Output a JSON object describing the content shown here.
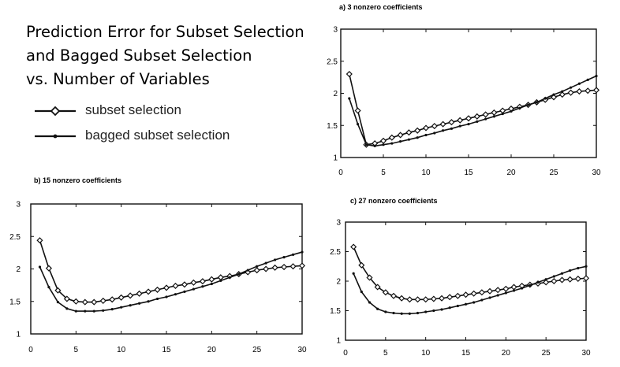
{
  "title": {
    "lines": [
      "Prediction Error for Subset Selection",
      "and Bagged Subset Selection",
      "vs. Number of Variables"
    ]
  },
  "legend": {
    "items": [
      {
        "label": "subset selection",
        "marker": "open-diamond"
      },
      {
        "label": "bagged subset selection",
        "marker": "small-dot"
      }
    ]
  },
  "chart_data": [
    {
      "type": "line",
      "title": "a) 3 nonzero coefficients",
      "xlim": [
        0,
        30
      ],
      "ylim": [
        1,
        3
      ],
      "xticks": [
        0,
        5,
        10,
        15,
        20,
        25,
        30
      ],
      "yticks": [
        1,
        1.5,
        2,
        2.5,
        3
      ],
      "yticklabels": [
        "1",
        "1.5",
        "2",
        "2.5",
        "3"
      ],
      "x": [
        1,
        2,
        3,
        4,
        5,
        6,
        7,
        8,
        9,
        10,
        11,
        12,
        13,
        14,
        15,
        16,
        17,
        18,
        19,
        20,
        21,
        22,
        23,
        24,
        25,
        26,
        27,
        28,
        29,
        30
      ],
      "series": [
        {
          "name": "subset selection",
          "marker": "open-diamond",
          "values": [
            2.3,
            1.73,
            1.2,
            1.22,
            1.26,
            1.31,
            1.35,
            1.39,
            1.42,
            1.46,
            1.49,
            1.52,
            1.55,
            1.58,
            1.61,
            1.64,
            1.67,
            1.7,
            1.73,
            1.76,
            1.79,
            1.82,
            1.86,
            1.9,
            1.94,
            1.98,
            2.01,
            2.03,
            2.04,
            2.05
          ]
        },
        {
          "name": "bagged subset selection",
          "marker": "small-dot",
          "values": [
            1.92,
            1.52,
            1.2,
            1.18,
            1.2,
            1.22,
            1.25,
            1.28,
            1.31,
            1.35,
            1.38,
            1.42,
            1.45,
            1.49,
            1.52,
            1.56,
            1.6,
            1.64,
            1.68,
            1.72,
            1.77,
            1.82,
            1.86,
            1.92,
            1.98,
            2.03,
            2.09,
            2.15,
            2.21,
            2.27
          ]
        }
      ]
    },
    {
      "type": "line",
      "title": "b) 15 nonzero coefficients",
      "xlim": [
        0,
        30
      ],
      "ylim": [
        1,
        3
      ],
      "xticks": [
        0,
        5,
        10,
        15,
        20,
        25,
        30
      ],
      "yticks": [
        1,
        1.5,
        2,
        2.5,
        3
      ],
      "yticklabels": [
        "1",
        "1.5",
        "2",
        "2.5",
        "3"
      ],
      "x": [
        1,
        2,
        3,
        4,
        5,
        6,
        7,
        8,
        9,
        10,
        11,
        12,
        13,
        14,
        15,
        16,
        17,
        18,
        19,
        20,
        21,
        22,
        23,
        24,
        25,
        26,
        27,
        28,
        29,
        30
      ],
      "series": [
        {
          "name": "subset selection",
          "marker": "open-diamond",
          "values": [
            2.44,
            2.01,
            1.67,
            1.54,
            1.5,
            1.49,
            1.49,
            1.51,
            1.53,
            1.56,
            1.59,
            1.62,
            1.65,
            1.68,
            1.71,
            1.74,
            1.76,
            1.79,
            1.81,
            1.84,
            1.87,
            1.89,
            1.92,
            1.95,
            1.98,
            2.0,
            2.02,
            2.03,
            2.04,
            2.05
          ]
        },
        {
          "name": "bagged subset selection",
          "marker": "small-dot",
          "values": [
            2.03,
            1.72,
            1.49,
            1.39,
            1.35,
            1.35,
            1.35,
            1.36,
            1.38,
            1.41,
            1.44,
            1.47,
            1.5,
            1.54,
            1.57,
            1.61,
            1.65,
            1.69,
            1.73,
            1.77,
            1.82,
            1.87,
            1.92,
            1.98,
            2.04,
            2.09,
            2.14,
            2.18,
            2.22,
            2.26
          ]
        }
      ]
    },
    {
      "type": "line",
      "title": "c) 27 nonzero coefficients",
      "xlim": [
        0,
        30
      ],
      "ylim": [
        1,
        3
      ],
      "xticks": [
        0,
        5,
        10,
        15,
        20,
        25,
        30
      ],
      "yticks": [
        1,
        1.5,
        2,
        2.5,
        3
      ],
      "yticklabels": [
        "1",
        "1.5",
        "2",
        "2.5",
        "3"
      ],
      "x": [
        1,
        2,
        3,
        4,
        5,
        6,
        7,
        8,
        9,
        10,
        11,
        12,
        13,
        14,
        15,
        16,
        17,
        18,
        19,
        20,
        21,
        22,
        23,
        24,
        25,
        26,
        27,
        28,
        29,
        30
      ],
      "series": [
        {
          "name": "subset selection",
          "marker": "open-diamond",
          "values": [
            2.58,
            2.27,
            2.06,
            1.9,
            1.81,
            1.75,
            1.71,
            1.69,
            1.69,
            1.69,
            1.7,
            1.71,
            1.73,
            1.75,
            1.77,
            1.79,
            1.81,
            1.83,
            1.85,
            1.87,
            1.9,
            1.92,
            1.94,
            1.96,
            1.98,
            2.0,
            2.02,
            2.03,
            2.04,
            2.05
          ]
        },
        {
          "name": "bagged subset selection",
          "marker": "small-dot",
          "values": [
            2.13,
            1.82,
            1.64,
            1.53,
            1.48,
            1.46,
            1.45,
            1.45,
            1.46,
            1.48,
            1.5,
            1.52,
            1.55,
            1.58,
            1.61,
            1.64,
            1.68,
            1.72,
            1.76,
            1.8,
            1.84,
            1.88,
            1.93,
            1.98,
            2.03,
            2.08,
            2.13,
            2.18,
            2.22,
            2.25
          ]
        }
      ]
    }
  ]
}
